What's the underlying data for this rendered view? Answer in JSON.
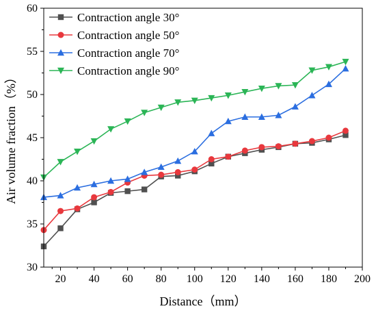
{
  "chart_data": {
    "type": "line",
    "xlabel": "Distance（mm）",
    "ylabel": "Air volume fraction（%）",
    "xlim": [
      10,
      200
    ],
    "ylim": [
      30,
      60
    ],
    "xticks": [
      20,
      40,
      60,
      80,
      100,
      120,
      140,
      160,
      180,
      200
    ],
    "yticks": [
      30,
      35,
      40,
      45,
      50,
      55,
      60
    ],
    "grid": false,
    "legend_position": "top-left",
    "x": [
      10,
      20,
      30,
      40,
      50,
      60,
      70,
      80,
      90,
      100,
      110,
      120,
      130,
      140,
      150,
      160,
      170,
      180,
      190
    ],
    "series": [
      {
        "name": "Contraction angle 30°",
        "color": "#505050",
        "marker": "square",
        "values": [
          32.4,
          34.5,
          36.7,
          37.5,
          38.6,
          38.8,
          39.0,
          40.5,
          40.6,
          41.1,
          42.0,
          42.8,
          43.2,
          43.6,
          43.9,
          44.3,
          44.4,
          44.8,
          45.3
        ]
      },
      {
        "name": "Contraction angle 50°",
        "color": "#e8383d",
        "marker": "circle",
        "values": [
          34.3,
          36.5,
          36.8,
          38.1,
          38.7,
          39.8,
          40.6,
          40.7,
          41.0,
          41.3,
          42.5,
          42.8,
          43.5,
          43.9,
          44.0,
          44.3,
          44.6,
          45.0,
          45.8
        ]
      },
      {
        "name": "Contraction angle 70°",
        "color": "#2b6ee0",
        "marker": "triangle-up",
        "values": [
          38.1,
          38.3,
          39.2,
          39.6,
          40.0,
          40.2,
          41.0,
          41.6,
          42.3,
          43.4,
          45.5,
          46.9,
          47.4,
          47.4,
          47.6,
          48.6,
          49.9,
          51.2,
          53.0
        ]
      },
      {
        "name": "Contraction angle 90°",
        "color": "#2bb556",
        "marker": "triangle-down",
        "values": [
          40.4,
          42.2,
          43.4,
          44.6,
          46.0,
          46.9,
          47.9,
          48.5,
          49.1,
          49.3,
          49.6,
          49.9,
          50.3,
          50.7,
          51.0,
          51.1,
          52.8,
          53.2,
          53.8
        ]
      }
    ]
  }
}
